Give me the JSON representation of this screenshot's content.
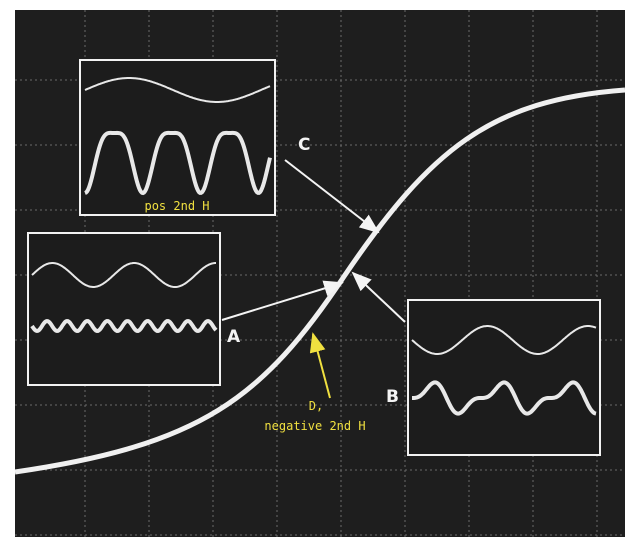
{
  "labels": {
    "c": "C",
    "c_caption": "pos 2nd H",
    "a": "A",
    "b": "B",
    "d": "D,",
    "d_caption": "negative 2nd H"
  }
}
